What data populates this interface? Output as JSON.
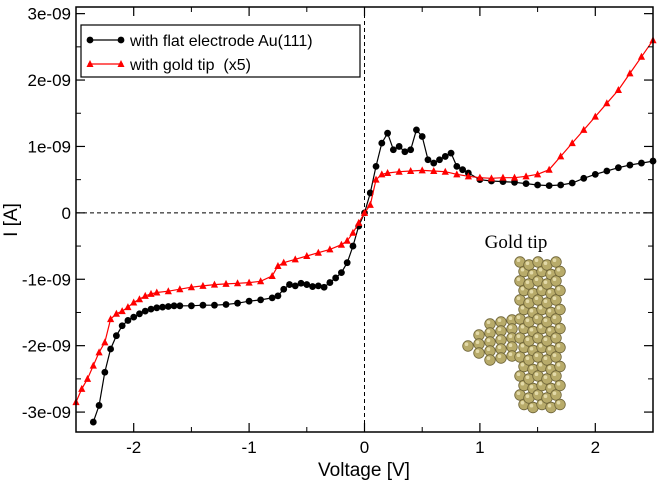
{
  "chart_data": {
    "type": "scatter",
    "title": "",
    "xlabel": "Voltage [V]",
    "ylabel": "I [A]",
    "xlim": [
      -2.5,
      2.5
    ],
    "ylim": [
      -3.3e-09,
      3.1e-09
    ],
    "xticks": [
      -2,
      -1,
      0,
      1,
      2
    ],
    "xtick_labels": [
      "-2",
      "-1",
      "0",
      "1",
      "2"
    ],
    "yticks": [
      3e-09,
      2e-09,
      1e-09,
      0,
      -1e-09,
      -2e-09,
      -3e-09
    ],
    "ytick_labels": [
      "3e-09",
      "2e-09",
      "1e-09",
      "0",
      "-1e-09",
      "-2e-09",
      "-3e-09"
    ],
    "grid": false,
    "legend_position": "top-left",
    "reference_lines": [
      "x = 0 (dashed)",
      "y = 0 (dashed)"
    ],
    "annotation": "Gold tip",
    "series": [
      {
        "name": "with flat electrode Au(111)",
        "color": "#000000",
        "marker": "circle",
        "points": [
          [
            -2.35,
            -3.15e-09
          ],
          [
            -2.3,
            -2.9e-09
          ],
          [
            -2.25,
            -2.4e-09
          ],
          [
            -2.2,
            -2.05e-09
          ],
          [
            -2.15,
            -1.85e-09
          ],
          [
            -2.1,
            -1.7e-09
          ],
          [
            -2.05,
            -1.62e-09
          ],
          [
            -2.0,
            -1.57e-09
          ],
          [
            -1.95,
            -1.52e-09
          ],
          [
            -1.9,
            -1.48e-09
          ],
          [
            -1.85,
            -1.45e-09
          ],
          [
            -1.8,
            -1.43e-09
          ],
          [
            -1.75,
            -1.42e-09
          ],
          [
            -1.7,
            -1.41e-09
          ],
          [
            -1.65,
            -1.4e-09
          ],
          [
            -1.6,
            -1.4e-09
          ],
          [
            -1.5,
            -1.4e-09
          ],
          [
            -1.4,
            -1.39e-09
          ],
          [
            -1.3,
            -1.39e-09
          ],
          [
            -1.2,
            -1.38e-09
          ],
          [
            -1.1,
            -1.36e-09
          ],
          [
            -1.0,
            -1.33e-09
          ],
          [
            -0.9,
            -1.31e-09
          ],
          [
            -0.8,
            -1.28e-09
          ],
          [
            -0.75,
            -1.25e-09
          ],
          [
            -0.7,
            -1.15e-09
          ],
          [
            -0.65,
            -1.08e-09
          ],
          [
            -0.6,
            -1.1e-09
          ],
          [
            -0.55,
            -1.06e-09
          ],
          [
            -0.5,
            -1.08e-09
          ],
          [
            -0.45,
            -1.11e-09
          ],
          [
            -0.4,
            -1.1e-09
          ],
          [
            -0.35,
            -1.12e-09
          ],
          [
            -0.3,
            -1.05e-09
          ],
          [
            -0.25,
            -9.8e-10
          ],
          [
            -0.2,
            -9e-10
          ],
          [
            -0.15,
            -7.5e-10
          ],
          [
            -0.1,
            -5e-10
          ],
          [
            -0.05,
            -2e-10
          ],
          [
            0.0,
            0.0
          ],
          [
            0.05,
            3e-10
          ],
          [
            0.1,
            7e-10
          ],
          [
            0.15,
            1.05e-09
          ],
          [
            0.2,
            1.2e-09
          ],
          [
            0.25,
            9.5e-10
          ],
          [
            0.3,
            1e-09
          ],
          [
            0.35,
            9.2e-10
          ],
          [
            0.4,
            9.5e-10
          ],
          [
            0.45,
            1.25e-09
          ],
          [
            0.5,
            1.15e-09
          ],
          [
            0.55,
            8e-10
          ],
          [
            0.6,
            7.5e-10
          ],
          [
            0.65,
            8e-10
          ],
          [
            0.7,
            8.5e-10
          ],
          [
            0.75,
            9e-10
          ],
          [
            0.8,
            7e-10
          ],
          [
            0.85,
            6.5e-10
          ],
          [
            0.9,
            6e-10
          ],
          [
            1.0,
            5e-10
          ],
          [
            1.1,
            4.8e-10
          ],
          [
            1.2,
            4.7e-10
          ],
          [
            1.3,
            4.6e-10
          ],
          [
            1.4,
            4.4e-10
          ],
          [
            1.5,
            4.2e-10
          ],
          [
            1.6,
            4.1e-10
          ],
          [
            1.7,
            4.2e-10
          ],
          [
            1.8,
            4.5e-10
          ],
          [
            1.9,
            5.2e-10
          ],
          [
            2.0,
            5.8e-10
          ],
          [
            2.1,
            6.3e-10
          ],
          [
            2.2,
            6.8e-10
          ],
          [
            2.3,
            7.2e-10
          ],
          [
            2.4,
            7.5e-10
          ],
          [
            2.5,
            7.8e-10
          ]
        ]
      },
      {
        "name": "with gold tip  (x5)",
        "color": "#ff0000",
        "marker": "triangle",
        "points": [
          [
            -2.5,
            -2.85e-09
          ],
          [
            -2.45,
            -2.65e-09
          ],
          [
            -2.4,
            -2.5e-09
          ],
          [
            -2.35,
            -2.3e-09
          ],
          [
            -2.3,
            -2.1e-09
          ],
          [
            -2.25,
            -1.95e-09
          ],
          [
            -2.2,
            -1.6e-09
          ],
          [
            -2.15,
            -1.52e-09
          ],
          [
            -2.1,
            -1.48e-09
          ],
          [
            -2.05,
            -1.42e-09
          ],
          [
            -2.0,
            -1.35e-09
          ],
          [
            -1.95,
            -1.3e-09
          ],
          [
            -1.9,
            -1.25e-09
          ],
          [
            -1.85,
            -1.22e-09
          ],
          [
            -1.8,
            -1.2e-09
          ],
          [
            -1.7,
            -1.18e-09
          ],
          [
            -1.6,
            -1.15e-09
          ],
          [
            -1.5,
            -1.12e-09
          ],
          [
            -1.4,
            -1.1e-09
          ],
          [
            -1.3,
            -1.08e-09
          ],
          [
            -1.2,
            -1.07e-09
          ],
          [
            -1.1,
            -1.06e-09
          ],
          [
            -1.0,
            -1.05e-09
          ],
          [
            -0.9,
            -1.03e-09
          ],
          [
            -0.8,
            -9.5e-10
          ],
          [
            -0.75,
            -8e-10
          ],
          [
            -0.7,
            -7.5e-10
          ],
          [
            -0.6,
            -7e-10
          ],
          [
            -0.5,
            -6.5e-10
          ],
          [
            -0.4,
            -6e-10
          ],
          [
            -0.3,
            -5.5e-10
          ],
          [
            -0.2,
            -4.8e-10
          ],
          [
            -0.15,
            -4.2e-10
          ],
          [
            -0.1,
            -3e-10
          ],
          [
            -0.05,
            -1.5e-10
          ],
          [
            0.0,
            0.0
          ],
          [
            0.05,
            1.2e-10
          ],
          [
            0.1,
            5e-10
          ],
          [
            0.15,
            5.8e-10
          ],
          [
            0.2,
            6e-10
          ],
          [
            0.3,
            6.2e-10
          ],
          [
            0.4,
            6.3e-10
          ],
          [
            0.5,
            6.4e-10
          ],
          [
            0.6,
            6.3e-10
          ],
          [
            0.7,
            6.2e-10
          ],
          [
            0.8,
            5.8e-10
          ],
          [
            0.9,
            5.5e-10
          ],
          [
            1.0,
            5.3e-10
          ],
          [
            1.1,
            5.2e-10
          ],
          [
            1.2,
            5.3e-10
          ],
          [
            1.3,
            5.3e-10
          ],
          [
            1.4,
            5.5e-10
          ],
          [
            1.5,
            5.8e-10
          ],
          [
            1.6,
            6.5e-10
          ],
          [
            1.7,
            8.5e-10
          ],
          [
            1.8,
            1.05e-09
          ],
          [
            1.9,
            1.25e-09
          ],
          [
            2.0,
            1.45e-09
          ],
          [
            2.1,
            1.65e-09
          ],
          [
            2.2,
            1.85e-09
          ],
          [
            2.3,
            2.1e-09
          ],
          [
            2.4,
            2.35e-09
          ],
          [
            2.5,
            2.6e-09
          ]
        ]
      }
    ]
  }
}
